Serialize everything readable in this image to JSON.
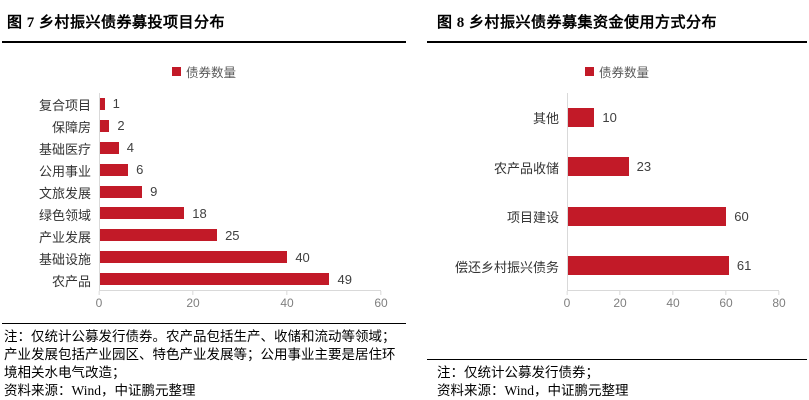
{
  "colors": {
    "bar": "#C21A28",
    "legend_text": "#595959",
    "category_text": "#333333",
    "value_text": "#404040",
    "tick_text": "#7F7F7F",
    "axis_line": "#D9D9D9",
    "rule": "#000000"
  },
  "chart_data": [
    {
      "type": "bar",
      "orientation": "horizontal",
      "title": "图 7 乡村振兴债券募投项目分布",
      "legend": [
        "债券数量"
      ],
      "legend_position": "top-center",
      "categories": [
        "复合项目",
        "保障房",
        "基础医疗",
        "公用事业",
        "文旅发展",
        "绿色领域",
        "产业发展",
        "基础设施",
        "农产品"
      ],
      "values": [
        1,
        2,
        4,
        6,
        9,
        18,
        25,
        40,
        49
      ],
      "xlim": [
        0,
        60
      ],
      "xticks": [
        0,
        20,
        40,
        60
      ],
      "grid": false,
      "data_labels": true,
      "note": "注：仅统计公募发行债券。农产品包括生产、收储和流动等领域；产业发展包括产业园区、特色产业发展等；公用事业主要是居住环境相关水电气改造；",
      "source": "资料来源：Wind，中证鹏元整理"
    },
    {
      "type": "bar",
      "orientation": "horizontal",
      "title": "图 8 乡村振兴债券募集资金使用方式分布",
      "legend": [
        "债券数量"
      ],
      "legend_position": "top-center",
      "categories": [
        "其他",
        "农产品收储",
        "项目建设",
        "偿还乡村振兴债务"
      ],
      "values": [
        10,
        23,
        60,
        61
      ],
      "xlim": [
        0,
        80
      ],
      "xticks": [
        0,
        20,
        40,
        60,
        80
      ],
      "grid": false,
      "data_labels": true,
      "note": "注：仅统计公募发行债券；",
      "source": "资料来源：Wind，中证鹏元整理"
    }
  ]
}
